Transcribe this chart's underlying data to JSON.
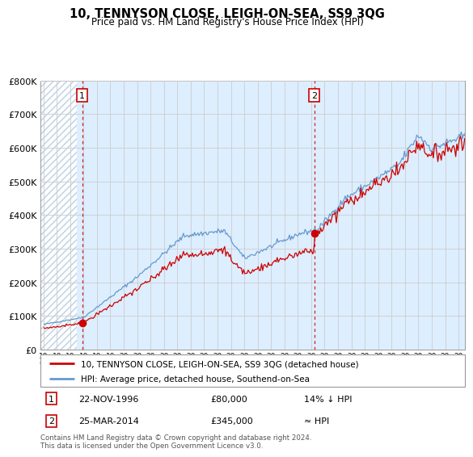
{
  "title": "10, TENNYSON CLOSE, LEIGH-ON-SEA, SS9 3QG",
  "subtitle": "Price paid vs. HM Land Registry's House Price Index (HPI)",
  "legend_line1": "10, TENNYSON CLOSE, LEIGH-ON-SEA, SS9 3QG (detached house)",
  "legend_line2": "HPI: Average price, detached house, Southend-on-Sea",
  "annotation1_date": "22-NOV-1996",
  "annotation1_price": "£80,000",
  "annotation1_hpi": "14% ↓ HPI",
  "annotation2_date": "25-MAR-2014",
  "annotation2_price": "£345,000",
  "annotation2_hpi": "≈ HPI",
  "footer": "Contains HM Land Registry data © Crown copyright and database right 2024.\nThis data is licensed under the Open Government Licence v3.0.",
  "red_color": "#cc0000",
  "blue_color": "#6699cc",
  "plot_bg": "#ddeeff",
  "hatch_color": "#bbccdd",
  "annotation_box_color": "#cc0000",
  "point1_x": 1996.9,
  "point1_y": 80000,
  "point2_x": 2014.23,
  "point2_y": 345000,
  "vline1_x": 1996.9,
  "vline2_x": 2014.23,
  "ylim": [
    0,
    800000
  ],
  "xlim": [
    1993.8,
    2025.5
  ],
  "hatch_end": 1996.5
}
